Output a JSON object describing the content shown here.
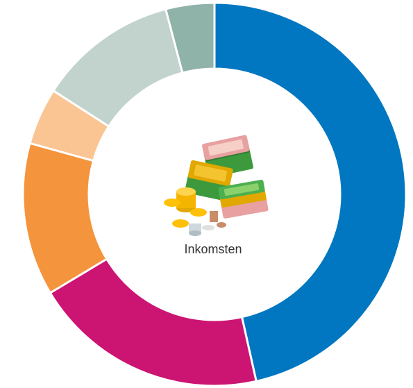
{
  "chart_data": {
    "type": "donut",
    "center_label": "Inkomsten",
    "values": [
      46.5,
      19.9,
      12.9,
      4.8,
      11.8,
      4.1
    ],
    "colors": [
      "#0077c0",
      "#cc1472",
      "#f4943c",
      "#fbc593",
      "#c1d3cc",
      "#8fb2a9"
    ]
  }
}
